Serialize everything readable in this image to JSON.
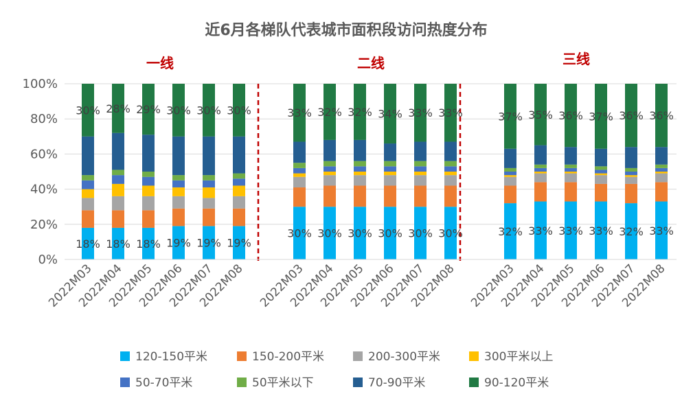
{
  "chart_data": {
    "type": "bar",
    "stacked": true,
    "title": "近6月各梯队代表城市面积段访问热度分布",
    "groups": [
      "一线",
      "二线",
      "三线"
    ],
    "categories": [
      "2022M03",
      "2022M04",
      "2022M05",
      "2022M06",
      "2022M07",
      "2022M08"
    ],
    "y_ticks": [
      "0%",
      "20%",
      "40%",
      "60%",
      "80%",
      "100%"
    ],
    "ylim": [
      0,
      100
    ],
    "grid": true,
    "legend_position": "bottom",
    "series_order": [
      "120-150平米",
      "150-200平米",
      "200-300平米",
      "300平米以上",
      "50-70平米",
      "50平米以下",
      "70-90平米",
      "90-120平米"
    ],
    "stack_order": [
      "120-150平米",
      "150-200平米",
      "200-300平米",
      "300平米以上",
      "50-70平米",
      "50平米以下",
      "70-90平米",
      "90-120平米"
    ],
    "colors": {
      "120-150平米": "#00b0f0",
      "150-200平米": "#ed7d31",
      "200-300平米": "#a5a5a5",
      "300平米以上": "#ffc000",
      "50-70平米": "#4472c4",
      "50平米以下": "#70ad47",
      "70-90平米": "#255e91",
      "90-120平米": "#217a44"
    },
    "data": {
      "一线": {
        "120-150平米": [
          18,
          18,
          18,
          19,
          19,
          19
        ],
        "150-200平米": [
          10,
          10,
          10,
          10,
          10,
          10
        ],
        "200-300平米": [
          7,
          8,
          8,
          7,
          6,
          7
        ],
        "300平米以上": [
          5,
          7,
          6,
          5,
          6,
          6
        ],
        "50-70平米": [
          5,
          5,
          5,
          4,
          4,
          4
        ],
        "50平米以下": [
          3,
          3,
          3,
          3,
          3,
          3
        ],
        "70-90平米": [
          22,
          21,
          21,
          22,
          22,
          21
        ],
        "90-120平米": [
          30,
          28,
          29,
          30,
          30,
          30
        ]
      },
      "二线": {
        "120-150平米": [
          30,
          30,
          30,
          30,
          30,
          30
        ],
        "150-200平米": [
          11,
          12,
          12,
          12,
          12,
          12
        ],
        "200-300平米": [
          6,
          6,
          6,
          6,
          6,
          6
        ],
        "300平米以上": [
          2,
          2,
          2,
          2,
          2,
          2
        ],
        "50-70平米": [
          3,
          3,
          3,
          3,
          3,
          3
        ],
        "50平米以下": [
          3,
          3,
          3,
          3,
          3,
          3
        ],
        "70-90平米": [
          12,
          12,
          12,
          10,
          11,
          11
        ],
        "90-120平米": [
          33,
          32,
          32,
          34,
          33,
          33
        ]
      },
      "三线": {
        "120-150平米": [
          32,
          33,
          33,
          33,
          32,
          33
        ],
        "150-200平米": [
          10,
          11,
          11,
          10,
          11,
          11
        ],
        "200-300平米": [
          5,
          5,
          5,
          5,
          4,
          5
        ],
        "300平米以上": [
          1,
          1,
          1,
          1,
          1,
          1
        ],
        "50-70平米": [
          2,
          2,
          2,
          2,
          2,
          2
        ],
        "50平米以下": [
          2,
          2,
          2,
          2,
          2,
          2
        ],
        "70-90平米": [
          11,
          11,
          10,
          10,
          12,
          10
        ],
        "90-120平米": [
          37,
          35,
          36,
          37,
          36,
          36
        ]
      }
    },
    "data_labels": {
      "一线": {
        "120-150平米": [
          "18%",
          "18%",
          "18%",
          "19%",
          "19%",
          "19%"
        ],
        "90-120平米": [
          "30%",
          "28%",
          "29%",
          "30%",
          "30%",
          "30%"
        ]
      },
      "二线": {
        "120-150平米": [
          "30%",
          "30%",
          "30%",
          "30%",
          "30%",
          "30%"
        ],
        "90-120平米": [
          "33%",
          "32%",
          "32%",
          "34%",
          "33%",
          "33%"
        ]
      },
      "三线": {
        "120-150平米": [
          "32%",
          "33%",
          "33%",
          "33%",
          "32%",
          "33%"
        ],
        "90-120平米": [
          "37%",
          "35%",
          "36%",
          "37%",
          "36%",
          "36%"
        ]
      }
    }
  }
}
